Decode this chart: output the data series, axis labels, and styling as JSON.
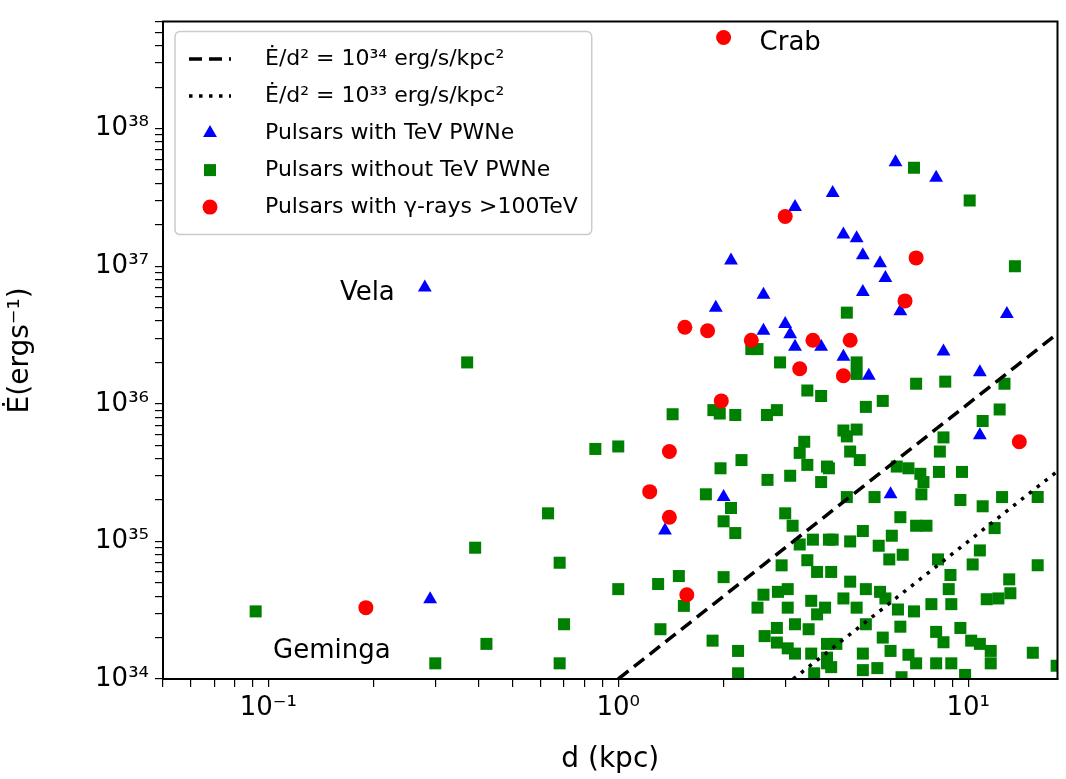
{
  "chart_data": {
    "type": "scatter",
    "xlabel": "d (kpc)",
    "ylabel": "Ė(ergs⁻¹)",
    "log": "xy",
    "grid": false,
    "legend": "top left",
    "xlim": [
      0.05,
      18
    ],
    "ylim": [
      1e+34,
      6e+38
    ],
    "xticks": [
      {
        "value": 0.05,
        "label": null
      },
      {
        "value": 0.06,
        "label": null
      },
      {
        "value": 0.07,
        "label": null
      },
      {
        "value": 0.08,
        "label": null
      },
      {
        "value": 0.09,
        "label": null
      },
      {
        "value": 0.1,
        "label": "10⁻¹"
      },
      {
        "value": 0.2,
        "label": null
      },
      {
        "value": 0.3,
        "label": null
      },
      {
        "value": 0.4,
        "label": null
      },
      {
        "value": 0.5,
        "label": null
      },
      {
        "value": 0.6,
        "label": null
      },
      {
        "value": 0.7,
        "label": null
      },
      {
        "value": 0.8,
        "label": null
      },
      {
        "value": 0.9,
        "label": null
      },
      {
        "value": 1,
        "label": "10⁰"
      },
      {
        "value": 2,
        "label": null
      },
      {
        "value": 3,
        "label": null
      },
      {
        "value": 4,
        "label": null
      },
      {
        "value": 5,
        "label": null
      },
      {
        "value": 6,
        "label": null
      },
      {
        "value": 7,
        "label": null
      },
      {
        "value": 8,
        "label": null
      },
      {
        "value": 9,
        "label": null
      },
      {
        "value": 10,
        "label": "10¹"
      }
    ],
    "yticks": [
      {
        "value": 1e+34,
        "label": "10³⁴"
      },
      {
        "value": 2e+34,
        "label": null
      },
      {
        "value": 3e+34,
        "label": null
      },
      {
        "value": 4e+34,
        "label": null
      },
      {
        "value": 5e+34,
        "label": null
      },
      {
        "value": 6e+34,
        "label": null
      },
      {
        "value": 7e+34,
        "label": null
      },
      {
        "value": 8e+34,
        "label": null
      },
      {
        "value": 9e+34,
        "label": null
      },
      {
        "value": 1e+35,
        "label": "10³⁵"
      },
      {
        "value": 2e+35,
        "label": null
      },
      {
        "value": 3e+35,
        "label": null
      },
      {
        "value": 4e+35,
        "label": null
      },
      {
        "value": 5e+35,
        "label": null
      },
      {
        "value": 6e+35,
        "label": null
      },
      {
        "value": 7e+35,
        "label": null
      },
      {
        "value": 8e+35,
        "label": null
      },
      {
        "value": 9e+35,
        "label": null
      },
      {
        "value": 1e+36,
        "label": "10³⁶"
      },
      {
        "value": 2e+36,
        "label": null
      },
      {
        "value": 3e+36,
        "label": null
      },
      {
        "value": 4e+36,
        "label": null
      },
      {
        "value": 5e+36,
        "label": null
      },
      {
        "value": 6e+36,
        "label": null
      },
      {
        "value": 7e+36,
        "label": null
      },
      {
        "value": 8e+36,
        "label": null
      },
      {
        "value": 9e+36,
        "label": null
      },
      {
        "value": 1e+37,
        "label": "10³⁷"
      },
      {
        "value": 2e+37,
        "label": null
      },
      {
        "value": 3e+37,
        "label": null
      },
      {
        "value": 4e+37,
        "label": null
      },
      {
        "value": 5e+37,
        "label": null
      },
      {
        "value": 6e+37,
        "label": null
      },
      {
        "value": 7e+37,
        "label": null
      },
      {
        "value": 8e+37,
        "label": null
      },
      {
        "value": 9e+37,
        "label": null
      },
      {
        "value": 1e+38,
        "label": "10³⁸"
      },
      {
        "value": 2e+38,
        "label": null
      },
      {
        "value": 3e+38,
        "label": null
      },
      {
        "value": 4e+38,
        "label": null
      },
      {
        "value": 5e+38,
        "label": null
      },
      {
        "value": 6e+38,
        "label": null
      }
    ],
    "annotations": [
      {
        "text": "Crab",
        "x": 2.0,
        "y": 4.6e+38
      },
      {
        "text": "Vela",
        "x": 0.28,
        "y": 7e+36
      },
      {
        "text": "Geminga",
        "x": 0.19,
        "y": 3.3e+34
      }
    ],
    "series": [
      {
        "name": "Ė/d² = 10³⁴ erg/s/kpc²",
        "type": "line",
        "line_style": "dashed",
        "marker": "none",
        "color": "#000000",
        "x": [
          1,
          18
        ],
        "values": [
          1e+34,
          3.24e+36
        ]
      },
      {
        "name": "Ė/d² = 10³³ erg/s/kpc²",
        "type": "line",
        "line_style": "dotted",
        "marker": "none",
        "color": "#000000",
        "x": [
          3.162,
          18
        ],
        "values": [
          1e+34,
          3.24e+35
        ]
      },
      {
        "name": "Pulsars with TeV PWNe",
        "marker": "triangle",
        "color": "#0000ff",
        "x": [
          0.28,
          0.29,
          3.2,
          4.1,
          6.2,
          8.1,
          1.9,
          2.1,
          2.6,
          2.6,
          3.0,
          3.1,
          3.2,
          3.8,
          4.4,
          4.8,
          5.0,
          5.6,
          5.8,
          5.0,
          6.4,
          5.2,
          4.4,
          8.5,
          10.8,
          12.9,
          10.8,
          6.0,
          2.0,
          1.36
        ],
        "values": [
          7e+36,
          3.8e+34,
          2.7e+37,
          3.4e+37,
          5.7e+37,
          4.4e+37,
          5e+36,
          1.1e+37,
          6.2e+36,
          3.4e+36,
          3.8e+36,
          3.2e+36,
          2.6e+36,
          2.6e+36,
          1.7e+37,
          1.6e+37,
          1.2e+37,
          1.05e+37,
          8.2e+36,
          6.5e+36,
          4.7e+36,
          1.6e+36,
          2.2e+36,
          2.4e+36,
          1.7e+36,
          4.5e+36,
          5.9e+35,
          2.2e+35,
          2.1e+35,
          1.2e+35
        ]
      },
      {
        "name": "Pulsars without TeV PWNe",
        "marker": "square",
        "color": "#008000",
        "x": [
          0.092,
          0.37,
          0.86,
          0.63,
          0.39,
          0.68,
          0.7,
          0.42,
          0.3,
          0.68,
          1.43,
          1.87,
          1.95,
          2.16,
          2.66,
          2.84,
          2.9,
          2.4,
          2.5,
          3.47,
          3.8,
          1.0,
          1.96,
          2.25,
          2.67,
          3.1,
          3.4,
          3.3,
          3.47,
          3.95,
          3.8,
          1.78,
          2.1,
          2.0,
          2.16,
          3.0,
          3.15,
          3.3,
          3.6,
          4.0,
          3.47,
          3.7,
          2.93,
          1.0,
          1.3,
          1.49,
          2.0,
          1.54,
          1.32,
          1.86,
          2.2,
          2.2,
          2.6,
          2.86,
          3.05,
          2.5,
          3.05,
          3.56,
          3.9,
          3.7,
          2.62,
          2.84,
          3.2,
          3.5,
          2.84,
          3.05,
          3.2,
          3.56,
          3.95,
          3.95,
          3.63,
          4.8,
          4.8,
          7.1,
          8.6,
          5.7,
          5.1,
          12.7,
          12.3,
          11,
          4.4,
          4.8,
          4.5,
          4.6,
          4.9,
          4.0,
          8.5,
          8.3,
          8.25,
          9.6,
          6.25,
          6.75,
          7.3,
          7.45,
          7.35,
          5.4,
          4.5,
          9.5,
          11,
          12.5,
          15.8,
          11.9,
          10.8,
          10.3,
          15.8,
          13.1,
          13.2,
          11.3,
          12.2,
          6.4,
          7.1,
          7.6,
          6.05,
          6.5,
          5.95,
          5.55,
          5.0,
          4.6,
          4.1,
          8.2,
          8.9,
          8.8,
          8.95,
          7.85,
          7.0,
          6.3,
          6.4,
          8.1,
          8.5,
          9.5,
          10.2,
          10.8,
          11.6,
          11.6,
          8.95,
          15.3,
          17.9,
          4.06,
          4.6,
          5.1,
          5.6,
          4.4,
          4.8,
          5.8,
          5.1,
          5.7,
          6.0,
          4.2,
          3.95,
          5.0,
          5.0,
          5.5,
          6.75,
          7.1,
          8.1,
          4.06,
          9.8,
          6.45,
          7.0,
          10.1,
          13.6,
          4.5
        ],
        "values": [
          3.1e+34,
          2e+36,
          4.7e+35,
          1.6e+35,
          9e+34,
          7e+34,
          2.5e+34,
          1.8e+34,
          1.3e+34,
          1.3e+34,
          8.4e+35,
          9e+35,
          8.5e+35,
          8.3e+35,
          8.3e+35,
          9e+35,
          2e+36,
          2.5e+36,
          2.5e+36,
          1.25e+36,
          1.14e+36,
          4.9e+35,
          3.4e+35,
          3.9e+35,
          2.8e+35,
          3e+35,
          5.3e+35,
          4.4e+35,
          3.6e+35,
          3.5e+35,
          2.7e+35,
          2.2e+35,
          1.75e+35,
          1.4e+35,
          1.15e+35,
          1.6e+35,
          1.3e+35,
          9.5e+34,
          1.03e+35,
          1.03e+35,
          7.3e+34,
          6e+34,
          6.7e+34,
          4.5e+34,
          4.9e+34,
          5.6e+34,
          5.5e+34,
          3.4e+34,
          2.3e+34,
          1.9e+34,
          1.6e+34,
          1.1e+34,
          4.1e+34,
          4.3e+34,
          4.5e+34,
          3.3e+34,
          3.3e+34,
          3.7e+34,
          3.3e+34,
          2.95e+34,
          2.05e+34,
          2.35e+34,
          2.5e+34,
          2.3e+34,
          1.84e+34,
          1.67e+34,
          1.53e+34,
          1.53e+34,
          1.8e+34,
          1.3e+34,
          1.1e+34,
          2e+36,
          1.65e+36,
          1.4e+36,
          1.45e+36,
          1.05e+36,
          9.5e+35,
          1.4e+36,
          9.1e+35,
          7.5e+35,
          6.4e+35,
          6.5e+35,
          5.8e+35,
          4.5e+35,
          3.9e+35,
          3.4e+35,
          5.7e+35,
          4.5e+35,
          3.2e+35,
          3.2e+35,
          3.5e+35,
          3.4e+35,
          3.1e+35,
          2.7e+35,
          2.2e+35,
          2.1e+35,
          2.1e+35,
          2e+35,
          1.8e+35,
          2.1e+35,
          2.1e+35,
          1.25e+35,
          8.6e+34,
          6.8e+34,
          6.7e+34,
          5.3e+34,
          4.2e+34,
          3.8e+34,
          3.85e+34,
          1.5e+35,
          1.3e+35,
          1.3e+35,
          1.1e+35,
          8e+34,
          7.4e+34,
          9.3e+34,
          1.19e+35,
          1e+35,
          1.03e+35,
          7.4e+34,
          5.7e+34,
          4.5e+34,
          3.5e+34,
          3.5e+34,
          3.1e+34,
          3.2e+34,
          2.4e+34,
          2.2e+34,
          1.85e+34,
          2.35e+34,
          1.9e+34,
          1.8e+34,
          1.6e+34,
          1.3e+34,
          1.3e+34,
          1.55e+34,
          1.25e+34,
          6e+34,
          5.1e+34,
          4.5e+34,
          4.3e+34,
          3.85e+34,
          3.3e+34,
          3.85e+34,
          2.5e+34,
          2e+34,
          1.6e+34,
          1.8e+34,
          1.43e+34,
          1.53e+34,
          1.16e+34,
          1.2e+34,
          1.5e+34,
          1.3e+34,
          1.3e+34,
          1.22e+34,
          1.07e+34,
          1.03e+34,
          5.2e+37,
          3e+37,
          1e+37,
          4.6e+36
        ]
      },
      {
        "name": "Pulsars with γ-rays >100TeV",
        "marker": "circle",
        "color": "#ff0000",
        "x": [
          2.0,
          3.0,
          7.1,
          6.6,
          1.55,
          1.8,
          2.4,
          3.6,
          4.6,
          3.3,
          4.4,
          1.97,
          1.4,
          14,
          1.23,
          1.4,
          1.57,
          0.19
        ],
        "values": [
          4.6e+38,
          2.3e+37,
          1.15e+37,
          5.6e+36,
          3.6e+36,
          3.4e+36,
          2.9e+36,
          2.9e+36,
          2.9e+36,
          1.8e+36,
          1.6e+36,
          1.05e+36,
          4.5e+35,
          5.3e+35,
          2.3e+35,
          1.5e+35,
          4.1e+34,
          3.3e+34
        ]
      }
    ]
  }
}
